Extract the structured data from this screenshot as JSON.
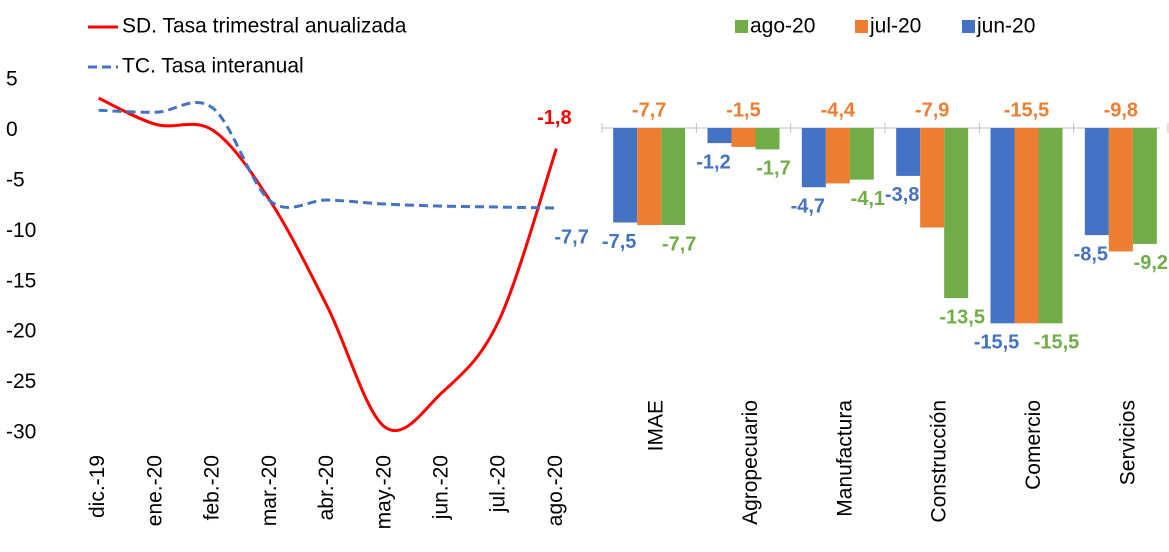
{
  "chart_data": [
    {
      "type": "line",
      "categories": [
        "dic.-19",
        "ene.-20",
        "feb.-20",
        "mar.-20",
        "abr.-20",
        "may.-20",
        "jun.-20",
        "jul.-20",
        "ago.-20"
      ],
      "series": [
        {
          "name": "SD. Tasa trimestral anualizada",
          "color": "#ff0000",
          "dash": false,
          "values": [
            3.2,
            0.6,
            0,
            -7,
            -17.5,
            -29.4,
            -26,
            -18.8,
            -1.8
          ],
          "value_labels": [
            null,
            null,
            null,
            null,
            null,
            null,
            null,
            null,
            "-1,8"
          ]
        },
        {
          "name": "TC. Tasa interanual",
          "color": "#4472c4",
          "dash": true,
          "values": [
            2,
            1.8,
            2.2,
            -7,
            -6.9,
            -7.3,
            -7.5,
            -7.6,
            -7.7
          ],
          "value_labels": [
            null,
            null,
            null,
            null,
            null,
            null,
            null,
            null,
            "-7,7"
          ]
        }
      ],
      "ylim": [
        -30,
        5
      ],
      "yticks": [
        -30,
        -25,
        -20,
        -15,
        -10,
        -5,
        0,
        5
      ]
    },
    {
      "type": "bar",
      "categories": [
        "IMAE",
        "Agropecuario",
        "Manufactura",
        "Construcción",
        "Comercio",
        "Servicios"
      ],
      "series": [
        {
          "name": "jun-20",
          "color": "#4472c4",
          "values": [
            -7.5,
            -1.2,
            -4.7,
            -3.8,
            -15.5,
            -8.5
          ],
          "value_labels": [
            "-7,5",
            "-1,2",
            "-4,7",
            "-3,8",
            "-15,5",
            "-8,5"
          ]
        },
        {
          "name": "jul-20",
          "color": "#ed7d31",
          "values": [
            -7.7,
            -1.5,
            -4.4,
            -7.9,
            -15.5,
            -9.8
          ],
          "value_labels": [
            "-7,7",
            "-1,5",
            "-4,4",
            "-7,9",
            "-15,5",
            "-9,8"
          ]
        },
        {
          "name": "ago-20",
          "color": "#70ad47",
          "values": [
            -7.7,
            -1.7,
            -4.1,
            -13.5,
            -15.5,
            -9.2
          ],
          "value_labels": [
            "-7,7",
            "-1,7",
            "-4,1",
            "-13,5",
            "-15,5",
            "-9,2"
          ]
        }
      ],
      "ylim": [
        -20,
        0
      ]
    }
  ]
}
